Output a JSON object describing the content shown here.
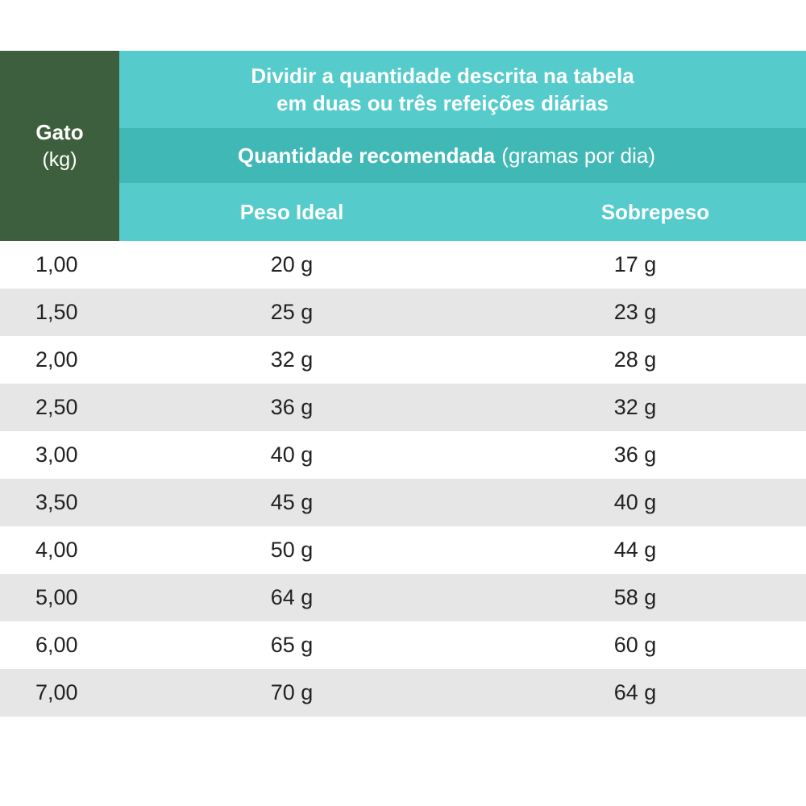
{
  "header": {
    "gato_title": "Gato",
    "gato_unit": "(kg)",
    "instruction_line1": "Dividir a quantidade descrita na tabela",
    "instruction_line2": "em duas ou três refeições diárias",
    "quantity_bold": "Quantidade recomendada",
    "quantity_light": "(gramas por dia)",
    "col_ideal": "Peso Ideal",
    "col_overweight": "Sobrepeso"
  },
  "colors": {
    "gato_bg": "#3e5f3d",
    "teal_light": "#55cbcb",
    "teal_dark": "#40b8b5",
    "row_alt": "#e6e6e6"
  },
  "chart_data": {
    "type": "table",
    "columns": [
      "Gato (kg)",
      "Peso Ideal",
      "Sobrepeso"
    ],
    "rows": [
      [
        "1,00",
        "20 g",
        "17 g"
      ],
      [
        "1,50",
        "25 g",
        "23 g"
      ],
      [
        "2,00",
        "32 g",
        "28 g"
      ],
      [
        "2,50",
        "36 g",
        "32 g"
      ],
      [
        "3,00",
        "40 g",
        "36 g"
      ],
      [
        "3,50",
        "45 g",
        "40 g"
      ],
      [
        "4,00",
        "50 g",
        "44 g"
      ],
      [
        "5,00",
        "64 g",
        "58 g"
      ],
      [
        "6,00",
        "65 g",
        "60 g"
      ],
      [
        "7,00",
        "70 g",
        "64 g"
      ]
    ]
  }
}
